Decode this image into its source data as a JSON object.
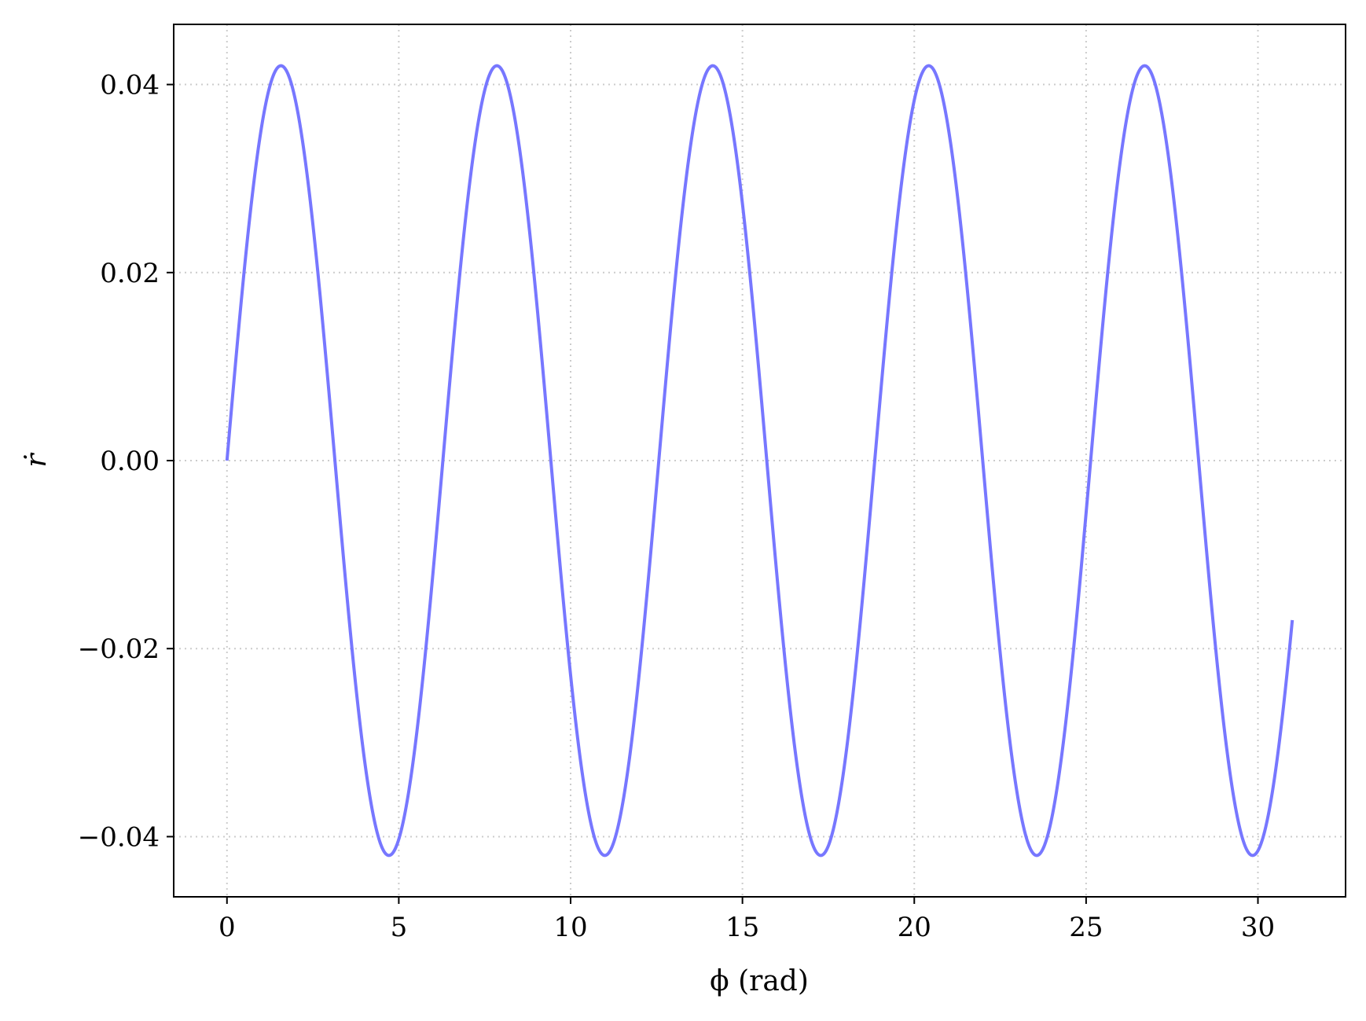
{
  "chart_data": {
    "type": "line",
    "xlabel": "ϕ (rad)",
    "ylabel": "ṙ",
    "xlim": [
      -1.55,
      32.55
    ],
    "ylim": [
      -0.0464,
      0.0464
    ],
    "x_ticks": [
      0,
      5,
      10,
      15,
      20,
      25,
      30
    ],
    "x_tick_labels": [
      "0",
      "5",
      "10",
      "15",
      "20",
      "25",
      "30"
    ],
    "y_ticks": [
      0.04,
      0.02,
      0.0,
      -0.02,
      -0.04
    ],
    "y_tick_labels": [
      "0.04",
      "0.02",
      "0.00",
      "−0.02",
      "−0.04"
    ],
    "grid": true,
    "series": [
      {
        "color": "#7777ff",
        "function": "0.042*sin(x)",
        "x": [
          0,
          1.571,
          3.142,
          4.712,
          6.283,
          7.854,
          9.425,
          10.996,
          12.566,
          14.137,
          15.708,
          17.279,
          18.85,
          20.42,
          21.991,
          23.562,
          25.133,
          26.704,
          28.274,
          29.845,
          31.0
        ],
        "y": [
          0,
          0.042,
          0,
          -0.042,
          0,
          0.042,
          0,
          -0.042,
          0,
          0.042,
          0,
          -0.042,
          0,
          0.042,
          0,
          -0.042,
          0,
          0.042,
          0,
          -0.042,
          -0.0258
        ]
      }
    ]
  }
}
